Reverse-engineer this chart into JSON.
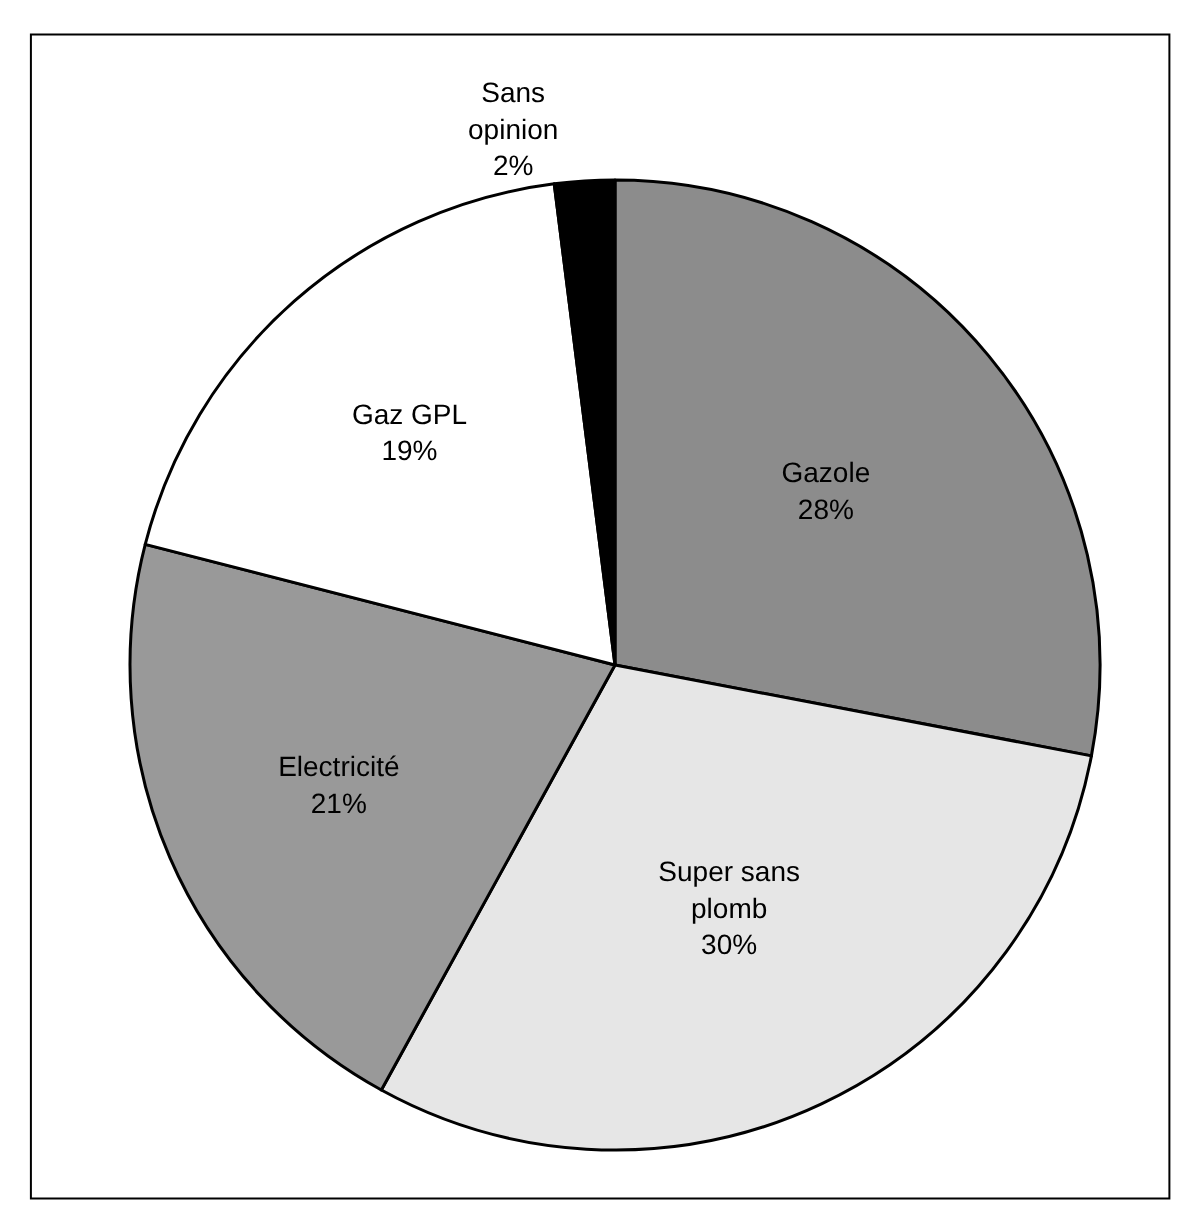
{
  "chart_data": {
    "type": "pie",
    "categories": [
      "Gazole",
      "Super sans plomb",
      "Electricité",
      "Gaz GPL",
      "Sans opinion"
    ],
    "values": [
      28,
      30,
      21,
      19,
      2
    ],
    "value_labels": [
      "28%",
      "30%",
      "21%",
      "19%",
      "2%"
    ],
    "colors": [
      "#8c8c8c",
      "#e6e6e6",
      "#999999",
      "#ffffff",
      "#000000"
    ],
    "legend": false
  }
}
